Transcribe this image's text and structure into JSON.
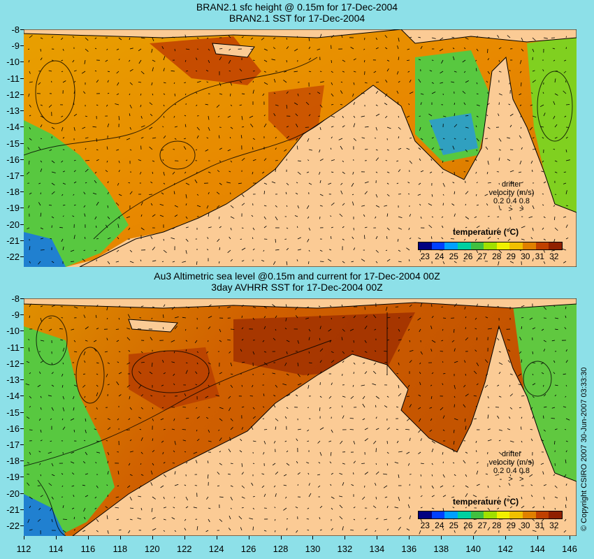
{
  "top_panel": {
    "title_line1": "BRAN2.1 sfc height @ 0.15m for 17-Dec-2004",
    "title_line2": "BRAN2.1 SST for 17-Dec-2004",
    "colorbar_label": "temperature (°C)",
    "colorbar_ticks": [
      "23",
      "24",
      "25",
      "26",
      "27",
      "28",
      "29",
      "30",
      "31",
      "32"
    ],
    "drifter_title": "drifter",
    "drifter_units": "velocity (m/s)",
    "drifter_scale": "0.2 0.4 0.8"
  },
  "bottom_panel": {
    "title_line1": "Au3 Altimetric sea level  @0.15m and current for 17-Dec-2004 00Z",
    "title_line2": "3day AVHRR SST for 17-Dec-2004 00Z",
    "colorbar_label": "temperature (°C)",
    "colorbar_ticks": [
      "23",
      "24",
      "25",
      "26",
      "27",
      "28",
      "29",
      "30",
      "31",
      "32"
    ],
    "drifter_title": "drifter",
    "drifter_units": "velocity (m/s)",
    "drifter_scale": "0.2 0.4 0.8"
  },
  "y_axis_labels": [
    "-8",
    "-9",
    "-10",
    "-11",
    "-12",
    "-13",
    "-14",
    "-15",
    "-16",
    "-17",
    "-18",
    "-19",
    "-20",
    "-21",
    "-22"
  ],
  "x_axis_labels": [
    "112",
    "114",
    "116",
    "118",
    "120",
    "122",
    "124",
    "126",
    "128",
    "130",
    "132",
    "134",
    "136",
    "138",
    "140",
    "142",
    "144",
    "146"
  ],
  "copyright": "© Copyright CSIRO 2007   30-Jun-2007 03:33:30",
  "colors": {
    "land": "#FBCB95",
    "background": "#8DE0E8",
    "colorbar": [
      "#000080",
      "#0040FF",
      "#00A0FF",
      "#00D0A0",
      "#40C040",
      "#A0E000",
      "#F0F000",
      "#F0C000",
      "#E08000",
      "#C04000",
      "#902000"
    ]
  }
}
